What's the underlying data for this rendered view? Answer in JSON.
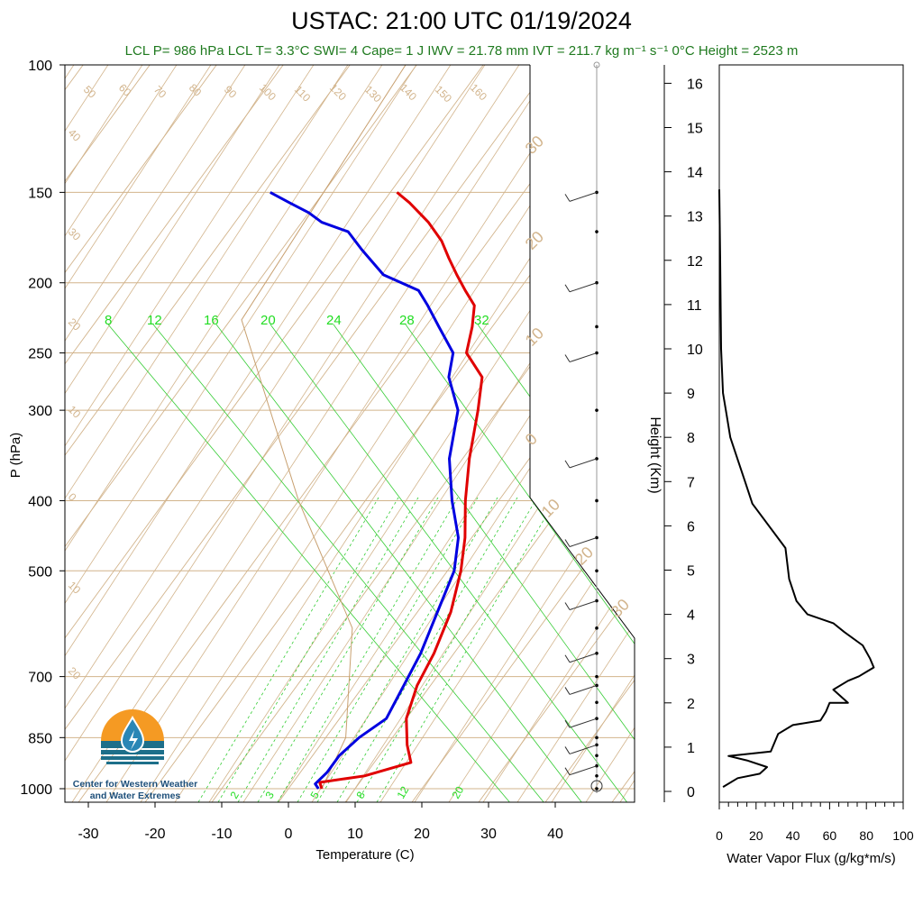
{
  "title": "USTAC: 21:00 UTC 01/19/2024",
  "subtitle": "LCL P= 986 hPa  LCL T= 3.3°C  SWI= 4  Cape= 1 J  IWV = 21.78 mm  IVT = 211.7 kg m⁻¹ s⁻¹  0°C Height = 2523 m",
  "logo": {
    "line1": "Center for Western Weather",
    "line2": "and Water Extremes"
  },
  "colors": {
    "temperature": "#e00000",
    "dewpoint": "#0000e0",
    "dry_adiabat": "#d2b48c",
    "mixing_ratio": "#33cc33",
    "flux": "#000000"
  },
  "chart_data": [
    {
      "type": "line",
      "subtype": "skew-T log-P",
      "xlabel": "Temperature (C)",
      "ylabel": "P (hPa)",
      "xlim": [
        -34,
        52
      ],
      "ylim": [
        1000,
        100
      ],
      "x_ticks": [
        -30,
        -20,
        -10,
        0,
        10,
        20,
        30,
        40
      ],
      "y_ticks": [
        100,
        150,
        200,
        250,
        300,
        400,
        500,
        700,
        850,
        1000
      ],
      "adiabat_labels": [
        "50",
        "60",
        "70",
        "80",
        "90",
        "100",
        "110",
        "120",
        "130",
        "140",
        "150",
        "160",
        "40",
        "30",
        "20",
        "10",
        "0",
        "10",
        "20"
      ],
      "mixing_ratio_labels_upper": [
        "8",
        "12",
        "16",
        "20",
        "24",
        "28",
        "32"
      ],
      "mixing_ratio_labels_lower": [
        "2",
        "3",
        "5",
        "8",
        "12",
        "20"
      ],
      "skew_labels": [
        "30",
        "20",
        "10",
        "0",
        "10",
        "20",
        "30"
      ],
      "series": [
        {
          "name": "temperature",
          "x": [
            5,
            4,
            10,
            15.5,
            13,
            10,
            8,
            7,
            5,
            2,
            -1,
            -5,
            -9,
            -13,
            -16,
            -21,
            -23,
            -25,
            -28,
            -31,
            -34,
            -37,
            -41,
            -46,
            -49
          ],
          "y": [
            1000,
            980,
            960,
            920,
            870,
            800,
            720,
            650,
            570,
            500,
            450,
            400,
            350,
            300,
            270,
            250,
            230,
            215,
            205,
            195,
            185,
            175,
            165,
            155,
            150
          ]
        },
        {
          "name": "dewpoint",
          "x": [
            4.5,
            3.5,
            4,
            4,
            5,
            7,
            6,
            5,
            3,
            1,
            -2,
            -7,
            -12,
            -16,
            -21,
            -23,
            -28,
            -32,
            -35,
            -42,
            -48,
            -52,
            -57,
            -60,
            -64,
            -68
          ],
          "y": [
            1000,
            985,
            950,
            900,
            850,
            800,
            720,
            650,
            570,
            500,
            450,
            400,
            350,
            300,
            270,
            250,
            230,
            215,
            205,
            195,
            180,
            170,
            165,
            160,
            155,
            150
          ]
        }
      ],
      "wind_barbs_hPa": [
        1000,
        960,
        930,
        900,
        870,
        850,
        800,
        760,
        720,
        700,
        650,
        600,
        550,
        500,
        450,
        400,
        350,
        300,
        250,
        230,
        200,
        170,
        150
      ]
    },
    {
      "type": "line",
      "xlabel": "Water Vapor Flux (g/kg*m/s)",
      "ylabel": "Height (Km)",
      "xlim": [
        0,
        100
      ],
      "ylim": [
        0,
        16
      ],
      "x_ticks": [
        0,
        20,
        40,
        60,
        80,
        100
      ],
      "y_ticks": [
        0,
        1,
        2,
        3,
        4,
        5,
        6,
        7,
        8,
        9,
        10,
        11,
        12,
        13,
        14,
        15,
        16
      ],
      "series": [
        {
          "name": "flux",
          "x": [
            2,
            10,
            22,
            26,
            15,
            5,
            28,
            30,
            32,
            40,
            55,
            58,
            60,
            70,
            62,
            70,
            76,
            80,
            84,
            82,
            78,
            68,
            62,
            48,
            42,
            38,
            36,
            18,
            14,
            10,
            6,
            4,
            2,
            1,
            0.5,
            0
          ],
          "y": [
            0.1,
            0.3,
            0.4,
            0.55,
            0.7,
            0.8,
            0.9,
            1.1,
            1.3,
            1.5,
            1.6,
            1.8,
            2.0,
            2.0,
            2.3,
            2.5,
            2.6,
            2.7,
            2.8,
            3.0,
            3.3,
            3.6,
            3.8,
            4.0,
            4.3,
            4.8,
            5.5,
            6.5,
            7.0,
            7.5,
            8.0,
            8.5,
            9.0,
            10,
            12,
            13.6
          ]
        }
      ]
    }
  ]
}
